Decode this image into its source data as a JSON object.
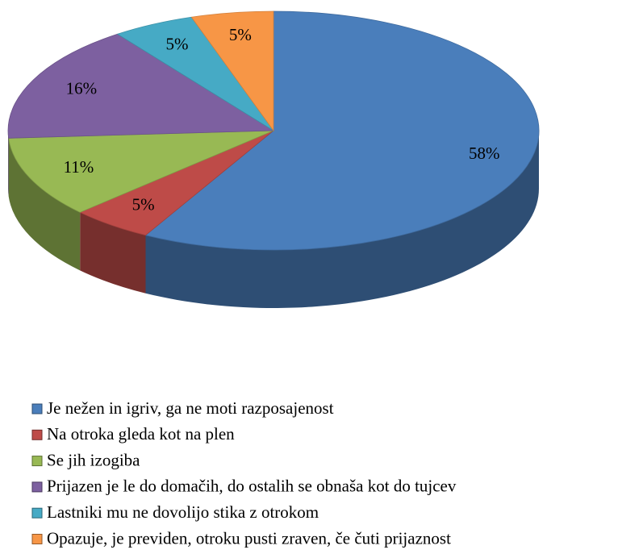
{
  "chart_data": {
    "type": "pie",
    "categories": [
      "Je nežen in igriv, ga ne moti razposajenost",
      "Na otroka gleda kot na plen",
      "Se jih izogiba",
      "Prijazen je le do domačih, do ostalih se obnaša kot do tujcev",
      "Lastniki mu ne dovolijo stika z otrokom",
      "Opazuje, je previden, otroku pusti zraven, če čuti prijaznost"
    ],
    "values": [
      58,
      5,
      11,
      16,
      5,
      5
    ],
    "value_labels": [
      "58%",
      "5%",
      "11%",
      "16%",
      "5%",
      "5%"
    ],
    "colors": [
      "#4a7ebb",
      "#be4b48",
      "#98b954",
      "#7d60a0",
      "#46aac5",
      "#f79646"
    ],
    "legend": "bottom"
  }
}
